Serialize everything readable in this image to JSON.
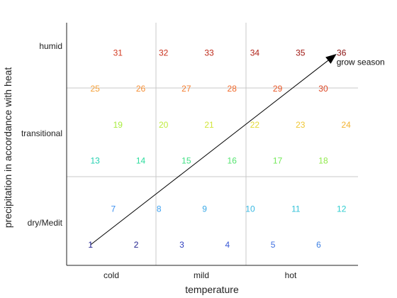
{
  "chart_data": {
    "type": "scatter",
    "title": "",
    "xlabel": "temperature",
    "ylabel": "precipitation in accordance with heat",
    "xlim": [
      0,
      6
    ],
    "ylim": [
      0,
      6
    ],
    "x_ticks": [
      {
        "value": 1,
        "label": "cold"
      },
      {
        "value": 3,
        "label": "mild"
      },
      {
        "value": 5,
        "label": "hot"
      }
    ],
    "y_ticks": [
      {
        "value": 0.5,
        "label": "dry/Medit"
      },
      {
        "value": 2.5,
        "label": "transitional"
      },
      {
        "value": 4.5,
        "label": "humid"
      }
    ],
    "grid": {
      "x_lines": [
        2,
        4
      ],
      "y_lines": [
        2,
        4
      ]
    },
    "points": [
      {
        "label": "1",
        "x": 0.5,
        "y": 0.0
      },
      {
        "label": "2",
        "x": 1.5,
        "y": 0.0
      },
      {
        "label": "3",
        "x": 2.5,
        "y": 0.0
      },
      {
        "label": "4",
        "x": 3.5,
        "y": 0.0
      },
      {
        "label": "5",
        "x": 4.5,
        "y": 0.0
      },
      {
        "label": "6",
        "x": 5.5,
        "y": 0.0
      },
      {
        "label": "7",
        "x": 1.0,
        "y": 0.9
      },
      {
        "label": "8",
        "x": 2.0,
        "y": 0.9
      },
      {
        "label": "9",
        "x": 3.0,
        "y": 0.9
      },
      {
        "label": "10",
        "x": 4.0,
        "y": 0.9
      },
      {
        "label": "11",
        "x": 5.0,
        "y": 0.9
      },
      {
        "label": "12",
        "x": 6.0,
        "y": 0.9
      },
      {
        "label": "13",
        "x": 0.6,
        "y": 2.1
      },
      {
        "label": "14",
        "x": 1.6,
        "y": 2.1
      },
      {
        "label": "15",
        "x": 2.6,
        "y": 2.1
      },
      {
        "label": "16",
        "x": 3.6,
        "y": 2.1
      },
      {
        "label": "17",
        "x": 4.6,
        "y": 2.1
      },
      {
        "label": "18",
        "x": 5.6,
        "y": 2.1
      },
      {
        "label": "19",
        "x": 1.1,
        "y": 3.0
      },
      {
        "label": "20",
        "x": 2.1,
        "y": 3.0
      },
      {
        "label": "21",
        "x": 3.1,
        "y": 3.0
      },
      {
        "label": "22",
        "x": 4.1,
        "y": 3.0
      },
      {
        "label": "23",
        "x": 5.1,
        "y": 3.0
      },
      {
        "label": "24",
        "x": 6.1,
        "y": 3.0
      },
      {
        "label": "25",
        "x": 0.6,
        "y": 3.9
      },
      {
        "label": "26",
        "x": 1.6,
        "y": 3.9
      },
      {
        "label": "27",
        "x": 2.6,
        "y": 3.9
      },
      {
        "label": "28",
        "x": 3.6,
        "y": 3.9
      },
      {
        "label": "29",
        "x": 4.6,
        "y": 3.9
      },
      {
        "label": "30",
        "x": 5.6,
        "y": 3.9
      },
      {
        "label": "31",
        "x": 1.1,
        "y": 4.8
      },
      {
        "label": "32",
        "x": 2.1,
        "y": 4.8
      },
      {
        "label": "33",
        "x": 3.1,
        "y": 4.8
      },
      {
        "label": "34",
        "x": 4.1,
        "y": 4.8
      },
      {
        "label": "35",
        "x": 5.1,
        "y": 4.8
      },
      {
        "label": "36",
        "x": 6.0,
        "y": 4.8
      }
    ],
    "arrow": {
      "label": "grow season",
      "from": [
        0.5,
        0.0
      ],
      "to": [
        6.0,
        4.8
      ]
    },
    "colors": {
      "1": "#1a1a8c",
      "2": "#23238f",
      "3": "#2e3dbd",
      "4": "#3a58d6",
      "5": "#3f6fe0",
      "6": "#3f81e4",
      "7": "#3b8ff0",
      "8": "#389ff0",
      "9": "#3aa9e6",
      "10": "#38b8e2",
      "11": "#34c2d8",
      "12": "#2ecdd0",
      "13": "#22d0b0",
      "14": "#2bdc9c",
      "15": "#3fe084",
      "16": "#55e470",
      "17": "#74e95a",
      "18": "#8fe94a",
      "19": "#a8ec3e",
      "20": "#bdec3a",
      "21": "#d2e538",
      "22": "#e5da36",
      "23": "#f0c734",
      "24": "#f3b434",
      "25": "#f5a13a",
      "26": "#f58f36",
      "27": "#f47d30",
      "28": "#f16a2c",
      "29": "#e85828",
      "30": "#dd4624",
      "31": "#d33a20",
      "32": "#c8301c",
      "33": "#bd2818",
      "34": "#b02016",
      "35": "#a01813",
      "36": "#8a1010"
    }
  }
}
